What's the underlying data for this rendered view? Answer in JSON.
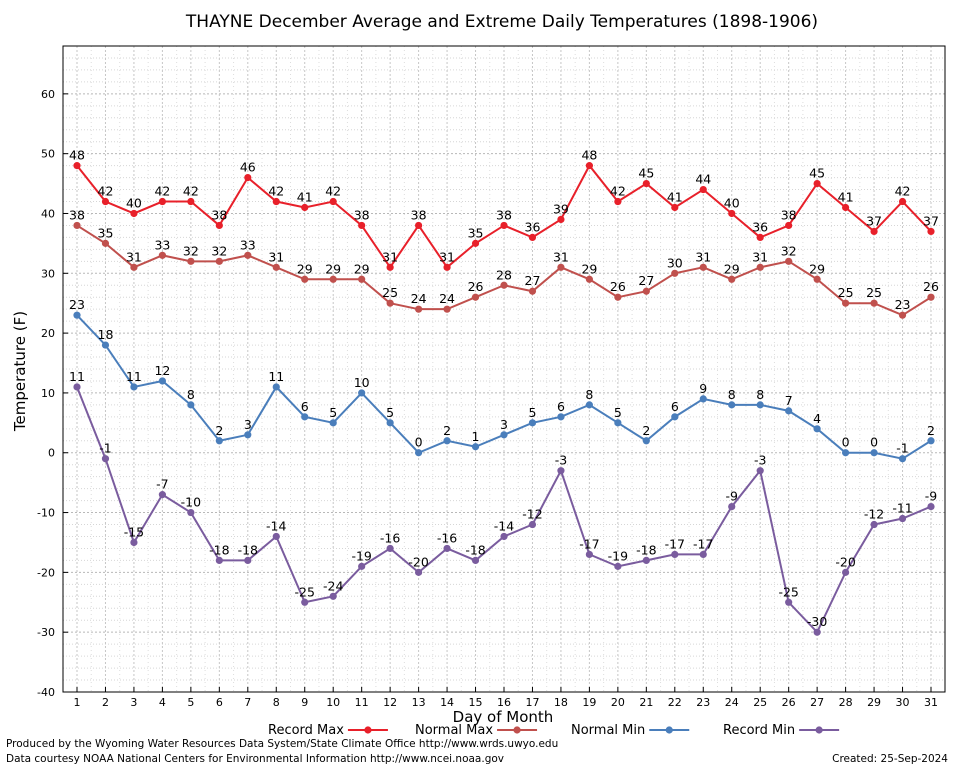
{
  "chart_data": {
    "type": "line",
    "title": "THAYNE December Average and Extreme Daily Temperatures (1898-1906)",
    "xlabel": "Day of Month",
    "ylabel": "Temperature (F)",
    "xlim": [
      1,
      31
    ],
    "ylim": [
      -40,
      68
    ],
    "yticks": [
      -40,
      -30,
      -20,
      -10,
      0,
      10,
      20,
      30,
      40,
      50,
      60
    ],
    "grid": true,
    "legend_position": "bottom",
    "x": [
      1,
      2,
      3,
      4,
      5,
      6,
      7,
      8,
      9,
      10,
      11,
      12,
      13,
      14,
      15,
      16,
      17,
      18,
      19,
      20,
      21,
      22,
      23,
      24,
      25,
      26,
      27,
      28,
      29,
      30,
      31
    ],
    "series": [
      {
        "name": "Record Max",
        "color": "#e8202a",
        "values": [
          48,
          42,
          40,
          42,
          42,
          38,
          46,
          42,
          41,
          42,
          38,
          31,
          38,
          31,
          35,
          38,
          36,
          39,
          48,
          42,
          45,
          41,
          44,
          40,
          36,
          38,
          45,
          41,
          37,
          42,
          37
        ]
      },
      {
        "name": "Normal Max",
        "color": "#c0504d",
        "values": [
          38,
          35,
          31,
          33,
          32,
          32,
          33,
          31,
          29,
          29,
          29,
          25,
          24,
          24,
          26,
          28,
          27,
          31,
          29,
          26,
          27,
          30,
          31,
          29,
          31,
          32,
          29,
          25,
          25,
          23,
          26
        ]
      },
      {
        "name": "Normal Min",
        "color": "#4a7ebb",
        "values": [
          23,
          18,
          11,
          12,
          8,
          2,
          3,
          11,
          6,
          5,
          10,
          5,
          0,
          2,
          1,
          3,
          5,
          6,
          8,
          5,
          2,
          6,
          9,
          8,
          8,
          7,
          4,
          0,
          0,
          -1,
          2
        ]
      },
      {
        "name": "Record Min",
        "color": "#7a5c9e",
        "values": [
          11,
          -1,
          -15,
          -7,
          -10,
          -18,
          -18,
          -14,
          -25,
          -24,
          -19,
          -16,
          -20,
          -16,
          -18,
          -14,
          -12,
          -3,
          -17,
          -19,
          -18,
          -17,
          -17,
          -9,
          -3,
          -25,
          -30,
          -20,
          -12,
          -11,
          -9
        ]
      }
    ]
  },
  "footer": {
    "produced_by": "Produced by the Wyoming Water Resources Data System/State Climate Office http://www.wrds.uwyo.edu",
    "data_courtesy": "Data courtesy NOAA National Centers for Environmental Information http://www.ncei.noaa.gov",
    "created": "Created:  25-Sep-2024"
  }
}
